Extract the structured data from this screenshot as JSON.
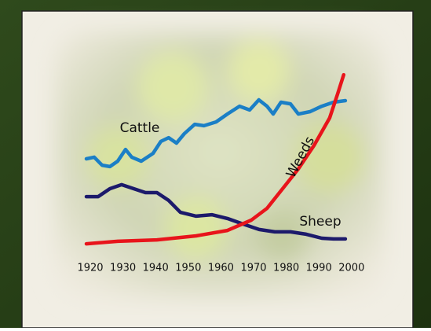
{
  "chart_data": {
    "type": "line",
    "xlim": [
      1910,
      2010
    ],
    "ylim": [
      0,
      100
    ],
    "xticks": [
      1920,
      1930,
      1940,
      1950,
      1960,
      1970,
      1980,
      1990,
      2000
    ],
    "series": [
      {
        "name": "Cattle",
        "color": "#1b7fc6",
        "x": [
          1918.8,
          1921.2,
          1923.6,
          1926.0,
          1928.4,
          1930.8,
          1932.7,
          1935.6,
          1939.2,
          1941.6,
          1944.0,
          1946.4,
          1948.8,
          1952.0,
          1954.8,
          1958.5,
          1962.0,
          1965.7,
          1968.8,
          1971.6,
          1974.1,
          1976.0,
          1978.4,
          1981.3,
          1983.7,
          1987.3,
          1990.9,
          1994.5,
          1998.1
        ],
        "values": [
          51.3,
          52.2,
          47.8,
          47.0,
          50.0,
          56.5,
          52.2,
          50.0,
          54.3,
          60.9,
          63.0,
          60.0,
          65.2,
          70.4,
          69.6,
          71.7,
          76.1,
          80.4,
          78.3,
          83.9,
          80.4,
          76.1,
          82.6,
          81.7,
          76.1,
          77.4,
          80.4,
          82.6,
          83.5
        ]
      },
      {
        "name": "Sheep",
        "color": "#1c1a6b",
        "x": [
          1918.8,
          1922.4,
          1926.0,
          1929.6,
          1933.3,
          1936.9,
          1940.4,
          1944.0,
          1947.6,
          1952.4,
          1957.2,
          1962.0,
          1966.8,
          1971.7,
          1976.5,
          1981.3,
          1986.1,
          1990.9,
          1994.5,
          1998.1
        ],
        "values": [
          30.4,
          30.4,
          34.8,
          37.0,
          34.8,
          32.6,
          32.6,
          28.3,
          21.7,
          19.6,
          20.4,
          18.3,
          15.2,
          12.2,
          10.9,
          10.9,
          9.6,
          7.4,
          7.0,
          7.0
        ]
      },
      {
        "name": "Weeds",
        "color": "#e8141b",
        "x": [
          1918.8,
          1928.4,
          1940.4,
          1952.4,
          1962.0,
          1969.3,
          1974.1,
          1978.9,
          1983.7,
          1988.5,
          1993.3,
          1995.7,
          1997.6
        ],
        "values": [
          4.3,
          5.7,
          6.5,
          8.7,
          11.7,
          17.4,
          23.9,
          34.8,
          45.7,
          58.7,
          73.9,
          87.0,
          97.8
        ]
      }
    ]
  }
}
